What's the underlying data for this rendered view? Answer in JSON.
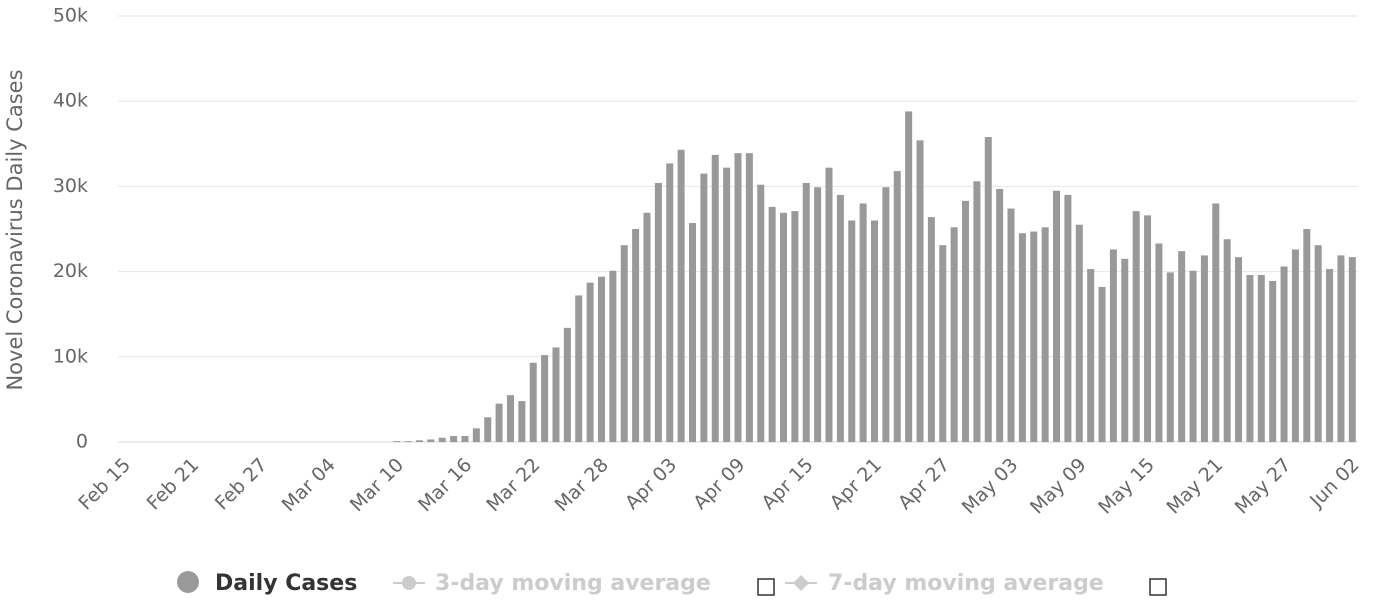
{
  "chart_data": {
    "type": "bar",
    "y_label": "Novel Coronavirus Daily Cases",
    "categories": [
      "Feb 15",
      null,
      null,
      null,
      null,
      null,
      "Feb 21",
      null,
      null,
      null,
      null,
      null,
      "Feb 27",
      null,
      null,
      null,
      null,
      null,
      "Mar 04",
      null,
      null,
      null,
      null,
      null,
      "Mar 10",
      null,
      null,
      null,
      null,
      null,
      "Mar 16",
      null,
      null,
      null,
      null,
      null,
      "Mar 22",
      null,
      null,
      null,
      null,
      null,
      "Mar 28",
      null,
      null,
      null,
      null,
      null,
      "Apr 03",
      null,
      null,
      null,
      null,
      null,
      "Apr 09",
      null,
      null,
      null,
      null,
      null,
      "Apr 15",
      null,
      null,
      null,
      null,
      null,
      "Apr 21",
      null,
      null,
      null,
      null,
      null,
      "Apr 27",
      null,
      null,
      null,
      null,
      null,
      "May 03",
      null,
      null,
      null,
      null,
      null,
      "May 09",
      null,
      null,
      null,
      null,
      null,
      "May 15",
      null,
      null,
      null,
      null,
      null,
      "May 21",
      null,
      null,
      null,
      null,
      null,
      "May 27",
      null,
      null,
      null,
      null,
      null,
      "Jun 02"
    ],
    "series": [
      {
        "name": "Daily Cases",
        "color": "#999999",
        "values": [
          0,
          0,
          0,
          0,
          0,
          0,
          0,
          0,
          0,
          0,
          0,
          0,
          0,
          0,
          0,
          0,
          0,
          0,
          0,
          0,
          0,
          0,
          0,
          0,
          100,
          100,
          200,
          300,
          500,
          700,
          700,
          1600,
          2900,
          4500,
          5500,
          4800,
          9300,
          10200,
          11100,
          13400,
          17200,
          18700,
          19400,
          20100,
          23100,
          25000,
          26900,
          30400,
          32700,
          34300,
          25700,
          31500,
          33700,
          32200,
          33900,
          33900,
          30200,
          27600,
          26900,
          27100,
          30400,
          29900,
          32200,
          29000,
          26000,
          28000,
          26000,
          29900,
          31800,
          38800,
          35400,
          26400,
          23100,
          25200,
          28300,
          30600,
          35800,
          29700,
          27400,
          24500,
          24700,
          25200,
          29500,
          29000,
          25500,
          20300,
          18200,
          22600,
          21500,
          27100,
          26600,
          23300,
          19900,
          22400,
          20100,
          21900,
          28000,
          23800,
          21700,
          19600,
          19600,
          18900,
          20600,
          22600,
          25000,
          23100,
          20300,
          21900,
          21700
        ]
      }
    ],
    "legend_extra": [
      {
        "name": "3-day moving average",
        "color": "#cccccc"
      },
      {
        "name": "7-day moving average",
        "color": "#cccccc"
      }
    ],
    "ylim": [
      0,
      50000
    ],
    "yticks": [
      0,
      {
        "value": 10000,
        "label": "10k"
      },
      {
        "value": 20000,
        "label": "20k"
      },
      {
        "value": 30000,
        "label": "30k"
      },
      {
        "value": 40000,
        "label": "40k"
      },
      {
        "value": 50000,
        "label": "50k"
      }
    ],
    "grid": true
  }
}
